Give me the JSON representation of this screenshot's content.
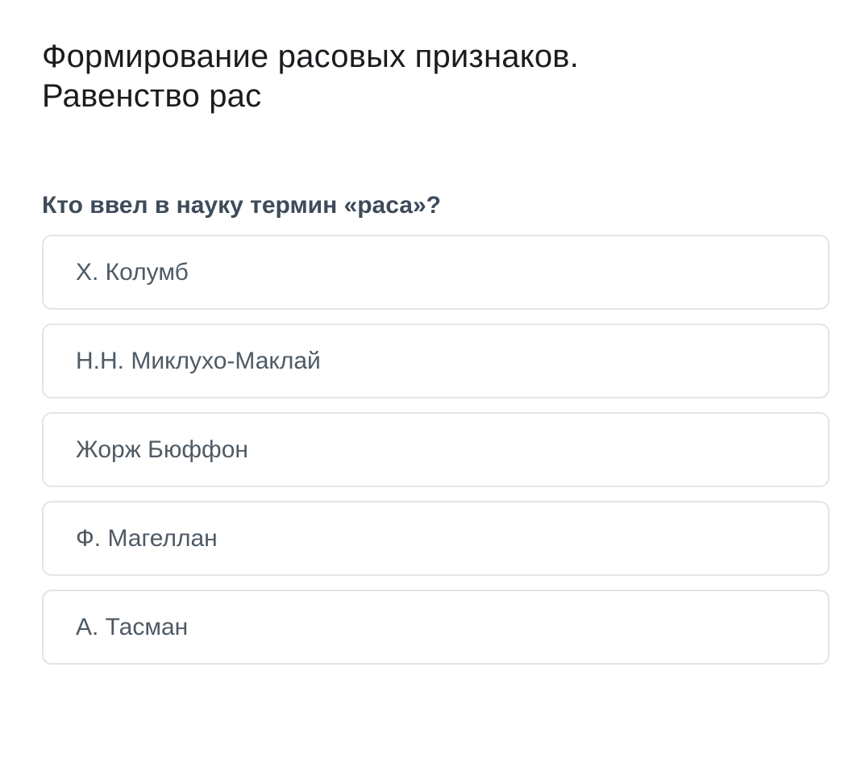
{
  "colors": {
    "background": "#ffffff",
    "title_text": "#1a1c1f",
    "question_text": "#3e4b5a",
    "option_text": "#4f5a64",
    "option_border": "#e3e4e6"
  },
  "header": {
    "title": "Формирование расовых признаков. Равенство рас",
    "title_lines": [
      "Формирование расовых признаков.",
      "Равенство рас"
    ]
  },
  "quiz": {
    "question": "Кто ввел в науку термин «раса»?",
    "options": [
      {
        "label": "Х. Колумб"
      },
      {
        "label": "Н.Н. Миклухо-Маклай"
      },
      {
        "label": "Жорж Бюффон"
      },
      {
        "label": "Ф. Магеллан"
      },
      {
        "label": "А. Тасман"
      }
    ]
  }
}
